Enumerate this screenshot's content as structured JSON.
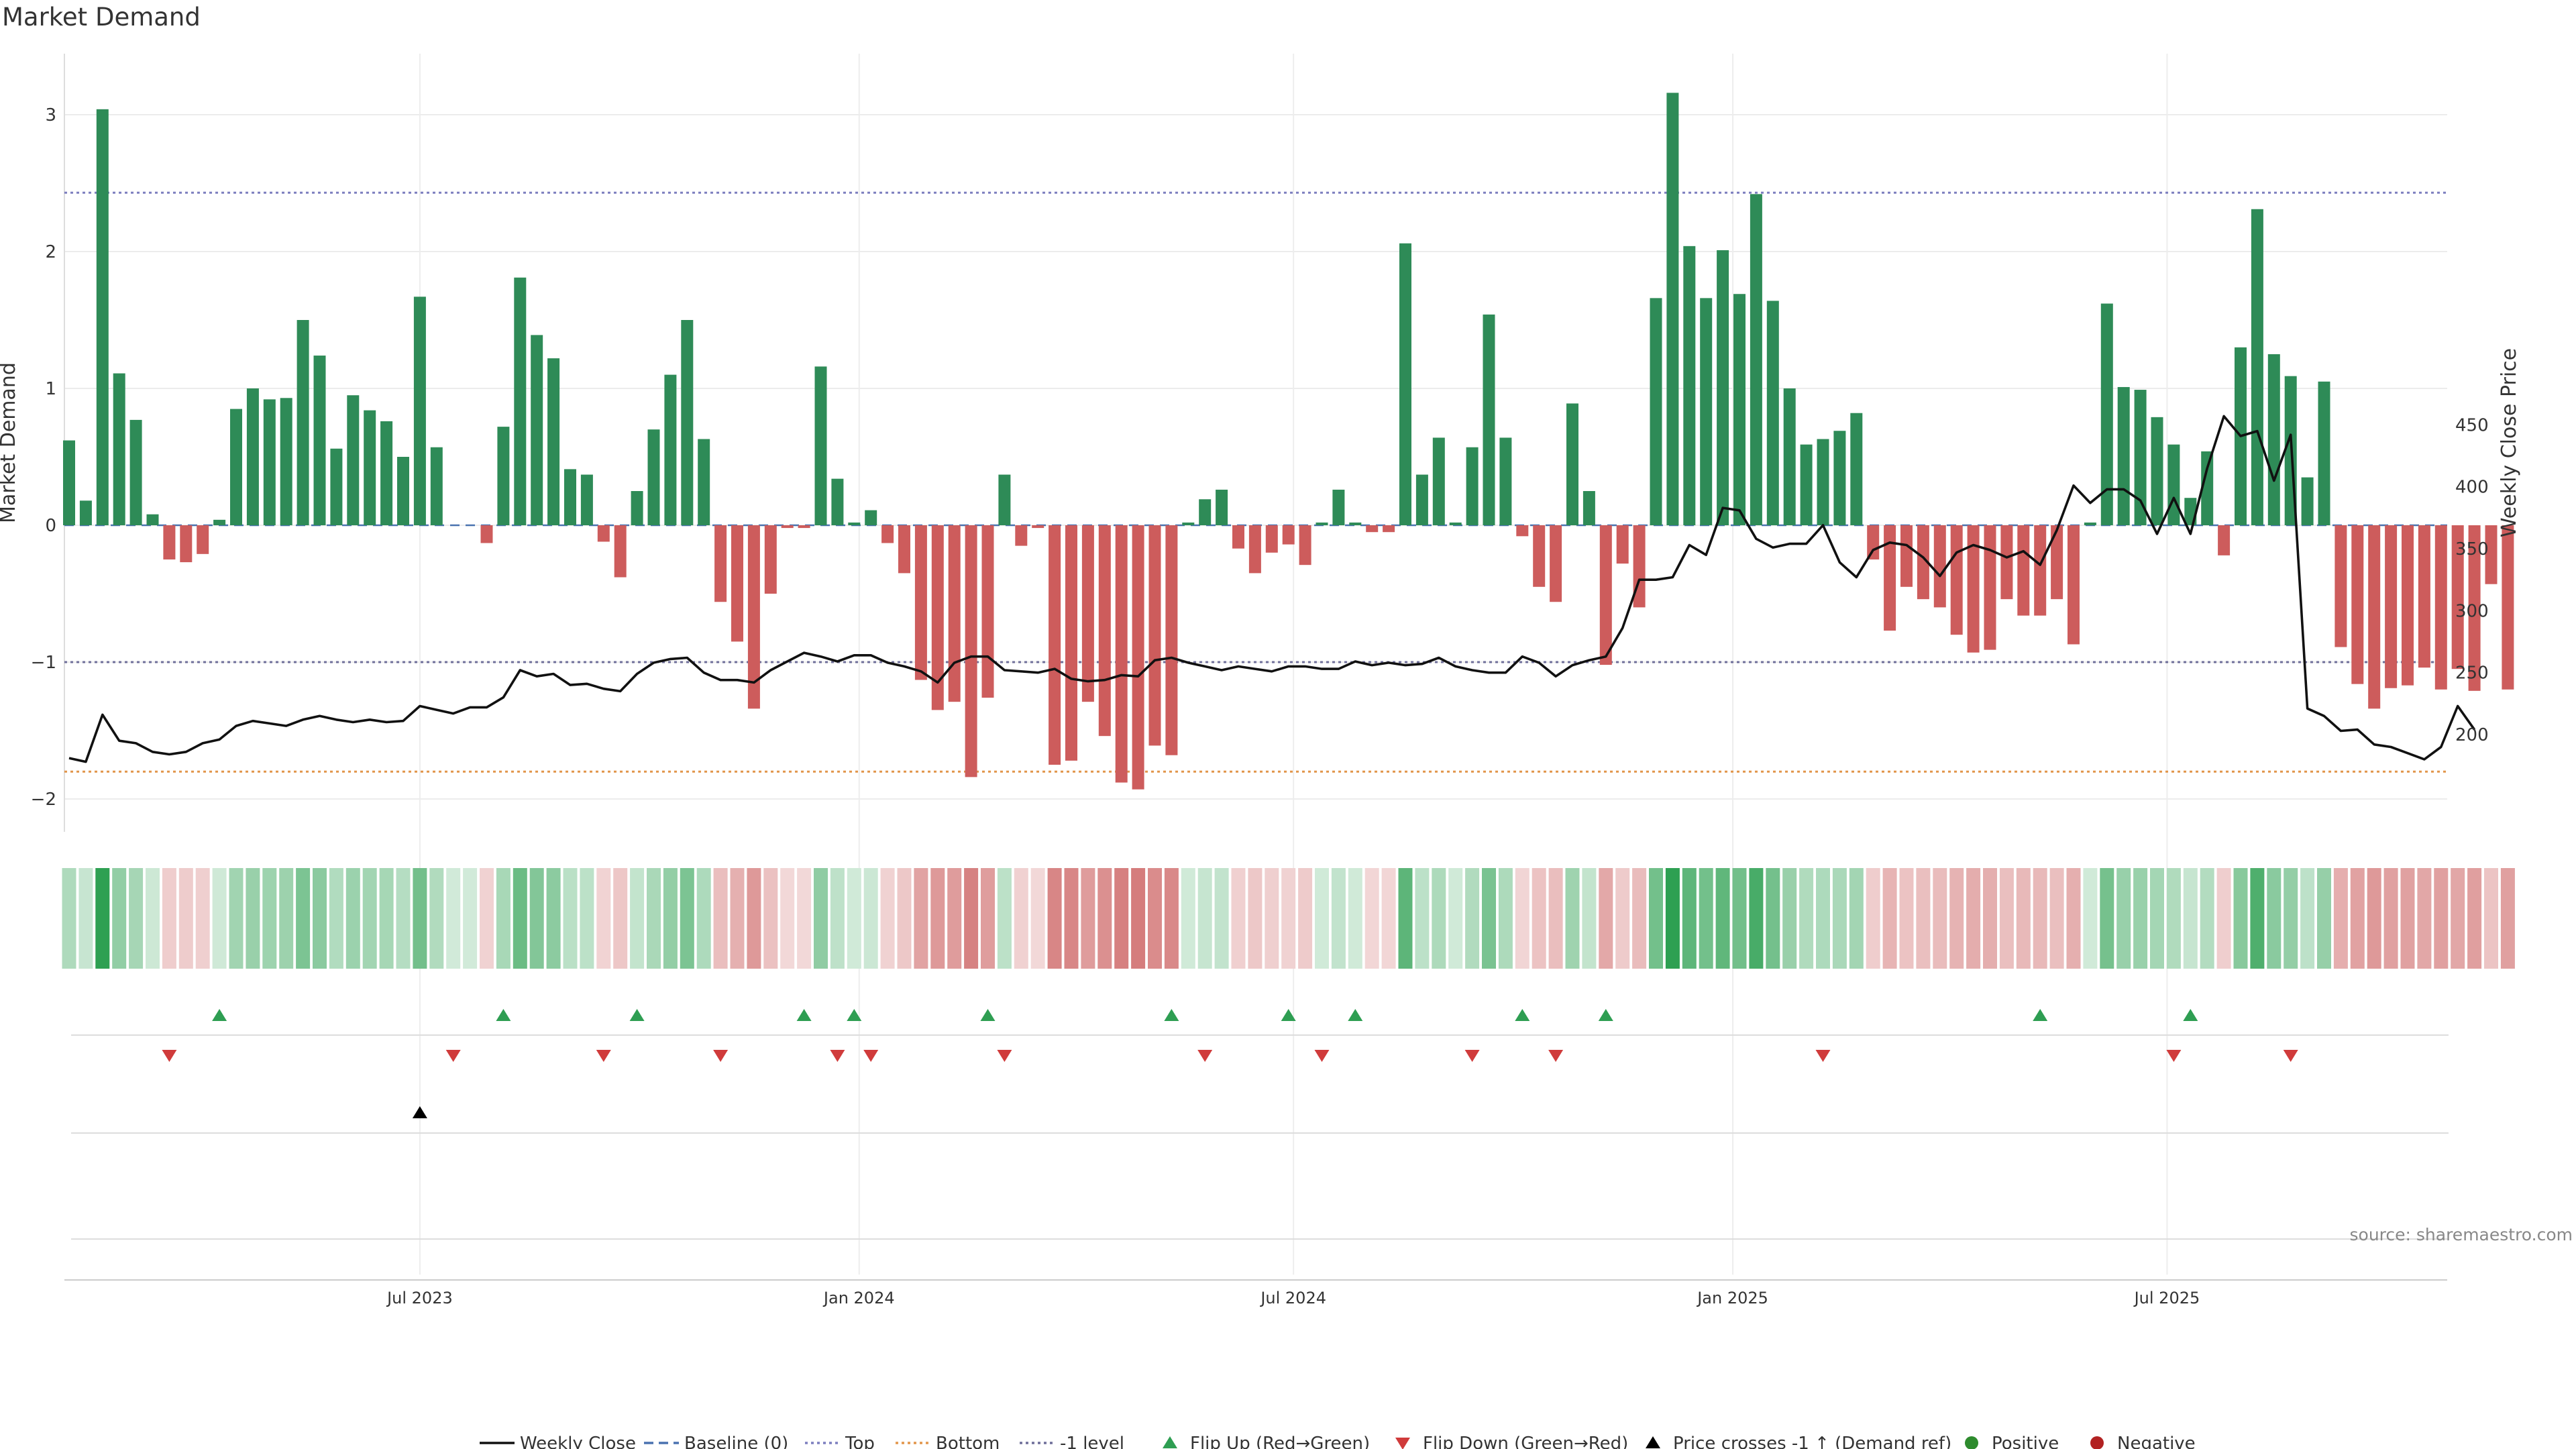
{
  "chart_data": {
    "type": "bar",
    "title": "Market Demand",
    "ylabel_left": "Market Demand",
    "ylabel_right": "Weekly Close Price",
    "source": "source: sharemaestro.com",
    "y_left_range": [
      -2.2,
      3.3
    ],
    "y_left_ticks": [
      -2,
      -1,
      0,
      1,
      2,
      3
    ],
    "y_right_range": [
      171,
      462
    ],
    "y_right_ticks": [
      200,
      250,
      300,
      350,
      400,
      450
    ],
    "x_ticks": [
      {
        "label": "Jul 2023",
        "index": 21
      },
      {
        "label": "Jan 2024",
        "index": 47.3
      },
      {
        "label": "Jul 2024",
        "index": 73.3
      },
      {
        "label": "Jan 2025",
        "index": 99.6
      },
      {
        "label": "Jul 2025",
        "index": 125.6
      }
    ],
    "levels": {
      "top": 2.43,
      "bottom": -1.8,
      "minus_one": -1.0,
      "baseline": 0
    },
    "demand": [
      0.62,
      0.18,
      3.04,
      1.11,
      0.77,
      0.08,
      -0.25,
      -0.27,
      -0.21,
      0.04,
      0.85,
      1.0,
      0.92,
      0.93,
      1.5,
      1.24,
      0.56,
      0.95,
      0.84,
      0.76,
      0.5,
      1.67,
      0.57,
      0,
      0,
      -0.13,
      0.72,
      1.81,
      1.39,
      1.22,
      0.41,
      0.37,
      -0.12,
      -0.38,
      0.25,
      0.7,
      1.1,
      1.5,
      0.63,
      -0.56,
      -0.85,
      -1.34,
      -0.5,
      -0.02,
      -0.02,
      1.16,
      0.34,
      0.02,
      0.11,
      -0.13,
      -0.35,
      -1.13,
      -1.35,
      -1.29,
      -1.84,
      -1.26,
      0.37,
      -0.15,
      -0.02,
      -1.75,
      -1.72,
      -1.29,
      -1.54,
      -1.88,
      -1.93,
      -1.61,
      -1.68,
      0.02,
      0.19,
      0.26,
      -0.17,
      -0.35,
      -0.2,
      -0.14,
      -0.29,
      0.02,
      0.26,
      0.02,
      -0.05,
      -0.05,
      2.06,
      0.37,
      0.64,
      0.02,
      0.57,
      1.54,
      0.64,
      -0.08,
      -0.45,
      -0.56,
      0.89,
      0.25,
      -1.02,
      -0.28,
      -0.6,
      1.66,
      3.16,
      2.04,
      1.66,
      2.01,
      1.69,
      2.42,
      1.64,
      1.0,
      0.59,
      0.63,
      0.69,
      0.82,
      -0.25,
      -0.77,
      -0.45,
      -0.54,
      -0.6,
      -0.8,
      -0.93,
      -0.91,
      -0.54,
      -0.66,
      -0.66,
      -0.54,
      -0.87,
      0.02,
      1.62,
      1.01,
      0.99,
      0.79,
      0.59,
      0.2,
      0.54,
      -0.22,
      1.3,
      2.31,
      1.25,
      1.09,
      0.35,
      1.05,
      -0.89,
      -1.16,
      -1.34,
      -1.19,
      -1.17,
      -1.04,
      -1.2,
      -1.05,
      -1.21,
      -0.43,
      -1.2
    ],
    "weekly_close": [
      181,
      178,
      216,
      195,
      193,
      186,
      184,
      186,
      193,
      196,
      207,
      211,
      209,
      207,
      212,
      215,
      212,
      210,
      212,
      210,
      211,
      223,
      220,
      217,
      222,
      222,
      230,
      252,
      247,
      249,
      240,
      241,
      237,
      235,
      249,
      258,
      261,
      262,
      250,
      244,
      244,
      242,
      252,
      259,
      266,
      263,
      259,
      264,
      264,
      258,
      255,
      251,
      242,
      258,
      263,
      263,
      252,
      251,
      250,
      253,
      245,
      243,
      244,
      248,
      247,
      260,
      262,
      258,
      255,
      252,
      255,
      253,
      251,
      255,
      255,
      253,
      253,
      259,
      256,
      258,
      256,
      257,
      262,
      255,
      252,
      250,
      250,
      263,
      258,
      247,
      256,
      260,
      263,
      286,
      325,
      325,
      327,
      353,
      345,
      383,
      381,
      358,
      351,
      354,
      354,
      369,
      339,
      327,
      349,
      355,
      353,
      343,
      328,
      347,
      353,
      349,
      343,
      348,
      337,
      365,
      401,
      387,
      398,
      398,
      389,
      362,
      391,
      362,
      415,
      457,
      441,
      445,
      405,
      442,
      221,
      215,
      203,
      204,
      192,
      190,
      185,
      180,
      190,
      223,
      204
    ],
    "flip_up": [
      9,
      26,
      34,
      44,
      47,
      55,
      66,
      73,
      77,
      87,
      92,
      118,
      127
    ],
    "flip_down": [
      6,
      23,
      32,
      39,
      46,
      48,
      56,
      68,
      75,
      84,
      89,
      105,
      126,
      133
    ],
    "price_cross": [
      21
    ],
    "legend": [
      {
        "label": "Weekly Close",
        "kind": "line-solid",
        "color": "#111111"
      },
      {
        "label": "Baseline (0)",
        "kind": "line-dash",
        "color": "#4a72b0"
      },
      {
        "label": "Top",
        "kind": "line-dot",
        "color": "#7d7fbf"
      },
      {
        "label": "Bottom",
        "kind": "line-dot",
        "color": "#e2964b"
      },
      {
        "label": "-1 level",
        "kind": "line-dot",
        "color": "#6f6f9a"
      },
      {
        "label": "Flip Up (Red→Green)",
        "kind": "tri-up",
        "color": "#2e9e52"
      },
      {
        "label": "Flip Down (Green→Red)",
        "kind": "tri-down",
        "color": "#d03b3b"
      },
      {
        "label": "Price crosses -1 ↑ (Demand ref)",
        "kind": "tri-up",
        "color": "#000000"
      },
      {
        "label": "Positive",
        "kind": "dot",
        "color": "#2e8b2e"
      },
      {
        "label": "Negative",
        "kind": "dot",
        "color": "#b22222"
      }
    ],
    "colors": {
      "positive_bar": "#2e8b57",
      "negative_bar": "#cd5c5c",
      "price_line": "#111111"
    }
  }
}
